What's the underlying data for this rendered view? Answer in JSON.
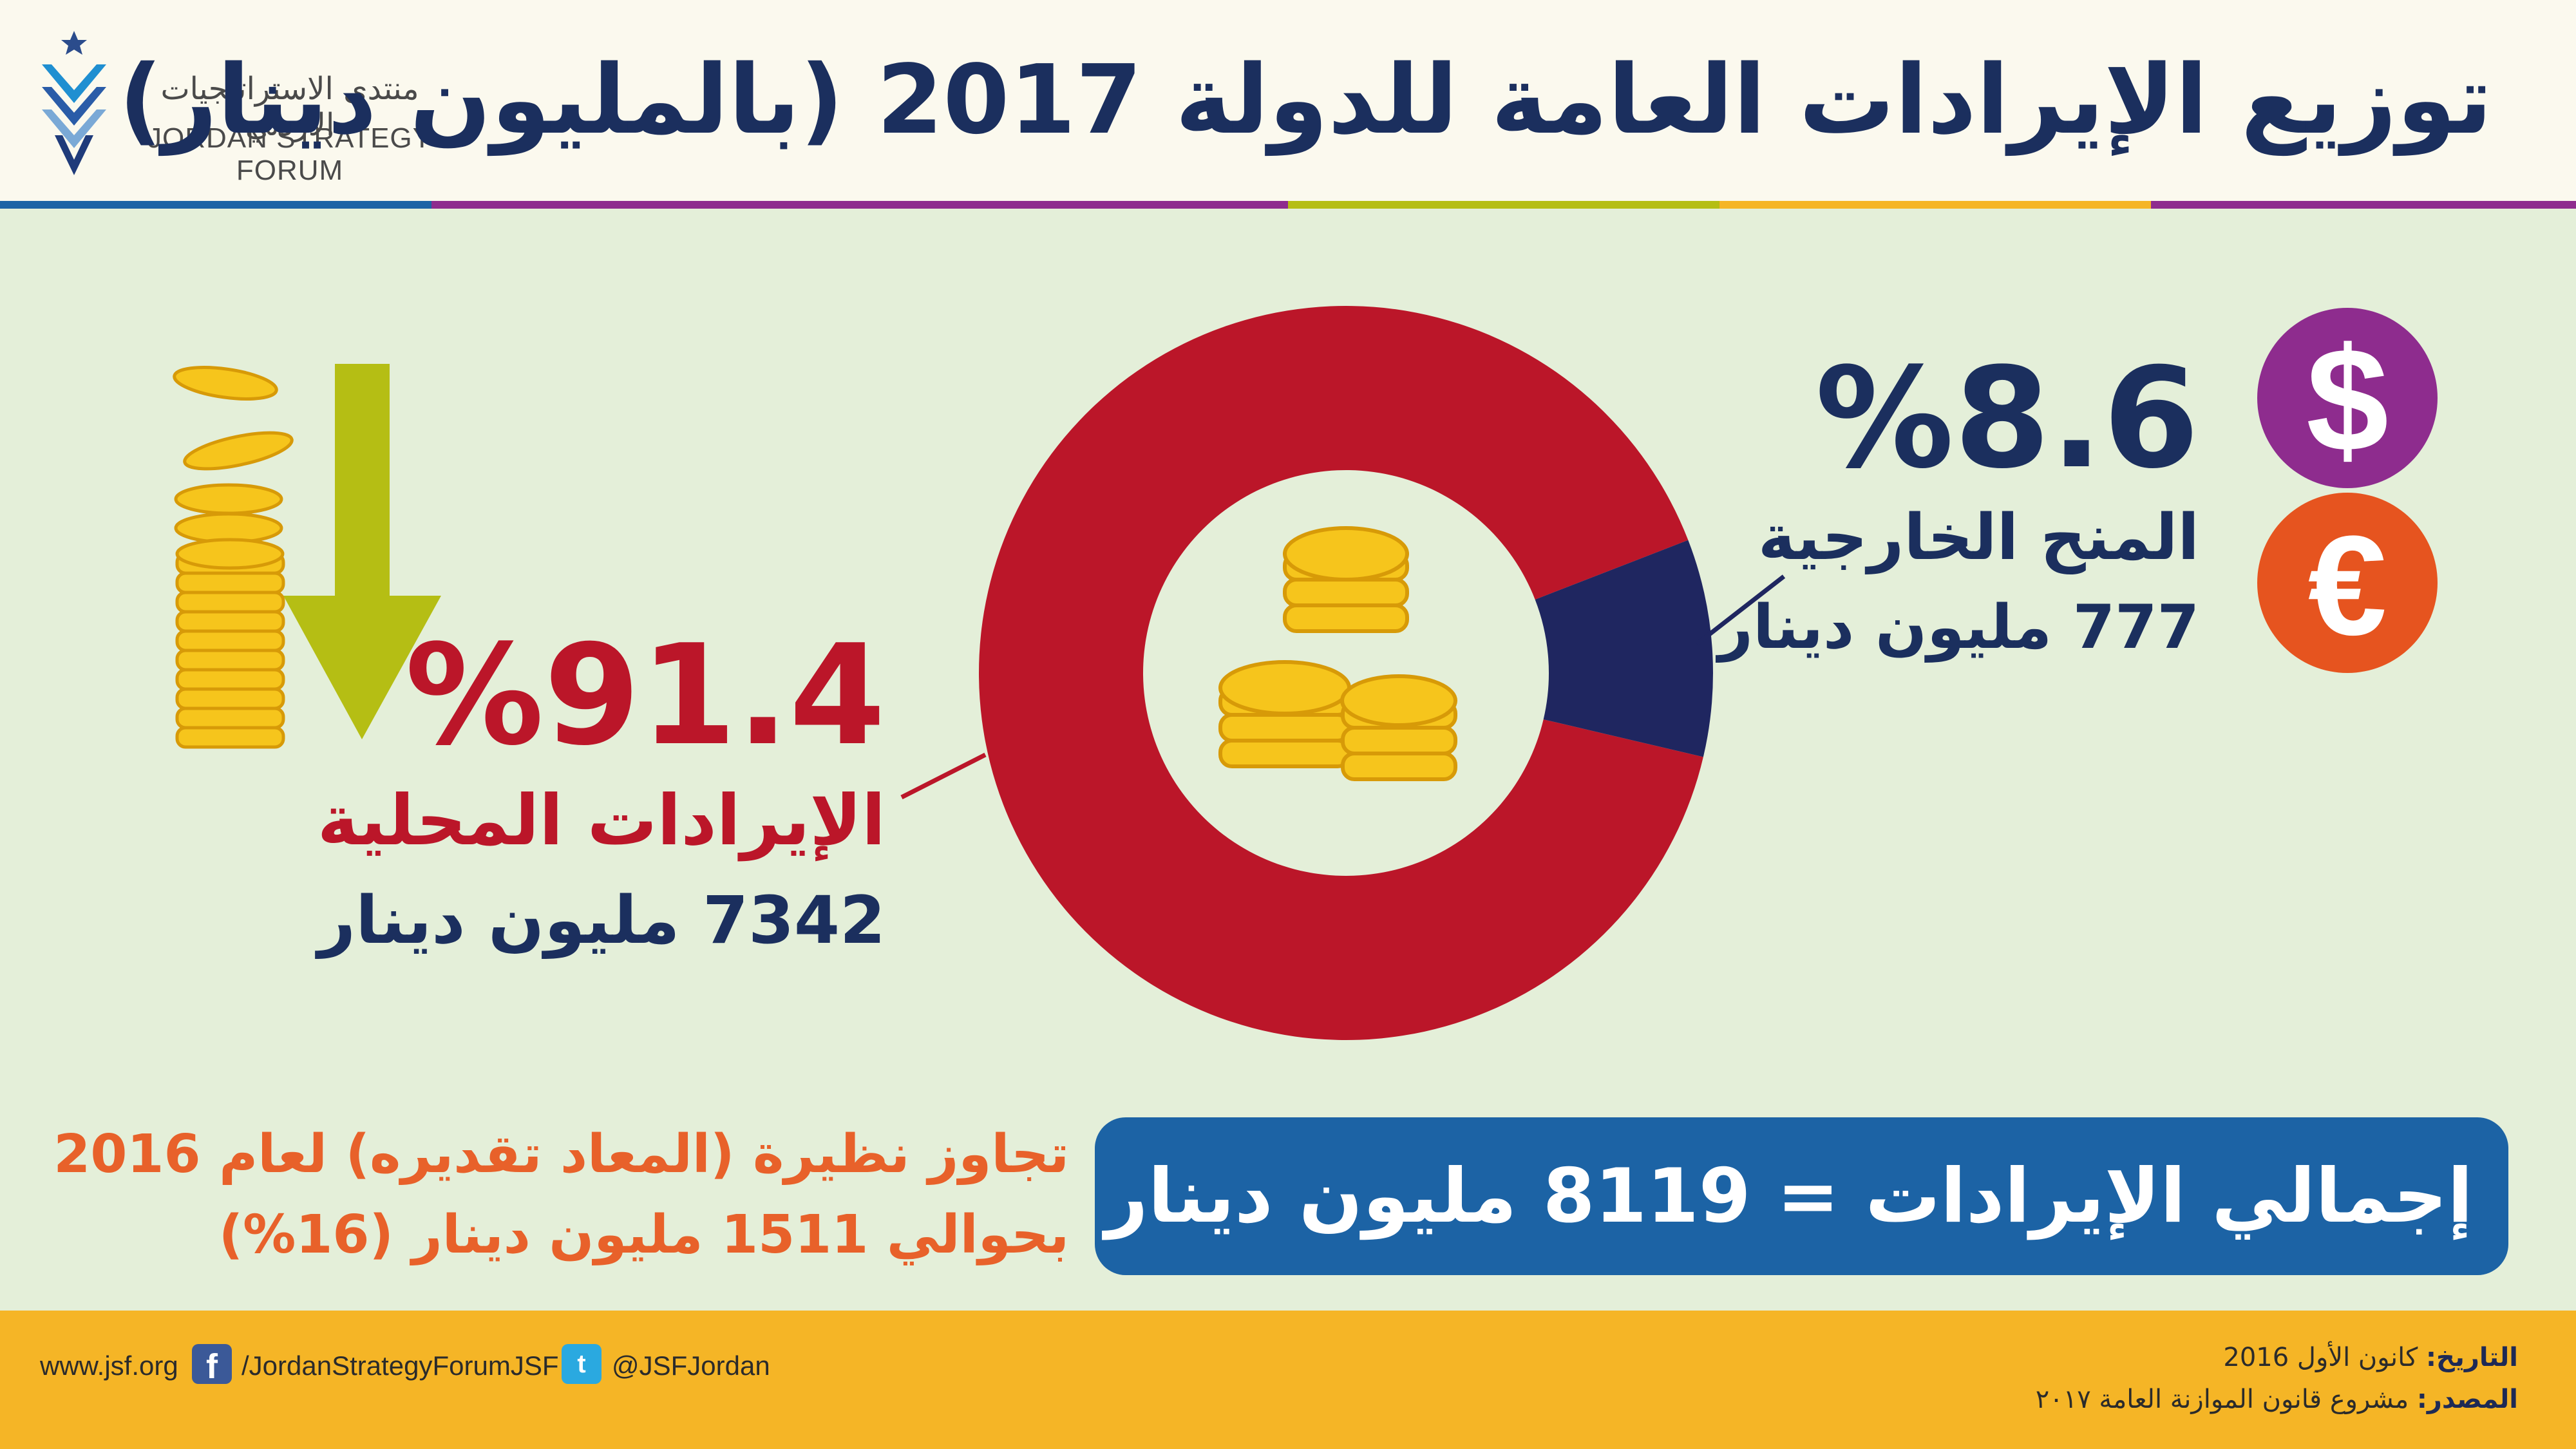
{
  "header": {
    "title": "توزيع الإيرادات العامة للدولة 2017 (بالمليون دينار)",
    "logo_arabic": "منتدى الاستراتيجيات الأردني",
    "logo_english": "JORDAN STRATEGY FORUM"
  },
  "chart_data": {
    "type": "pie",
    "title": "توزيع الإيرادات العامة للدولة 2017 (بالمليون دينار)",
    "categories": [
      "الإيرادات المحلية",
      "المنح الخارجية"
    ],
    "values": [
      7342,
      777
    ],
    "percents": [
      91.4,
      8.6
    ],
    "colors": [
      "#bb1629",
      "#1f2660"
    ],
    "unit": "مليون دينار"
  },
  "labels": {
    "domestic_pct": "%91.4",
    "domestic_name": "الإيرادات المحلية",
    "domestic_value": "7342 مليون دينار",
    "grants_pct": "%8.6",
    "grants_name": "المنح الخارجية",
    "grants_value": "777 مليون دينار"
  },
  "icons": {
    "dollar": "$",
    "euro": "€"
  },
  "total": {
    "text": "إجمالي الإيرادات = 8119 مليون دينار"
  },
  "note": {
    "line1": "تجاوز نظيرة (المعاد تقديره) لعام 2016",
    "line2": "بحوالي 1511 مليون دينار (16%)"
  },
  "footer": {
    "website": "www.jsf.org",
    "facebook": "/JordanStrategyForumJSF",
    "twitter": "@JSFJordan",
    "date_label": "التاريخ:",
    "date_value": "كانون الأول 2016",
    "source_label": "المصدر:",
    "source_value": "مشروع قانون الموازنة العامة ٢٠١٧"
  },
  "colors": {
    "navy": "#1b2f5e",
    "red": "#bb1629",
    "blue_box": "#1c63a5",
    "orange": "#e8612a",
    "footer": "#f5b526",
    "olive": "#b5be14",
    "purple": "#8e2c8e",
    "euro": "#e6541f",
    "background": "#e4efd9"
  }
}
